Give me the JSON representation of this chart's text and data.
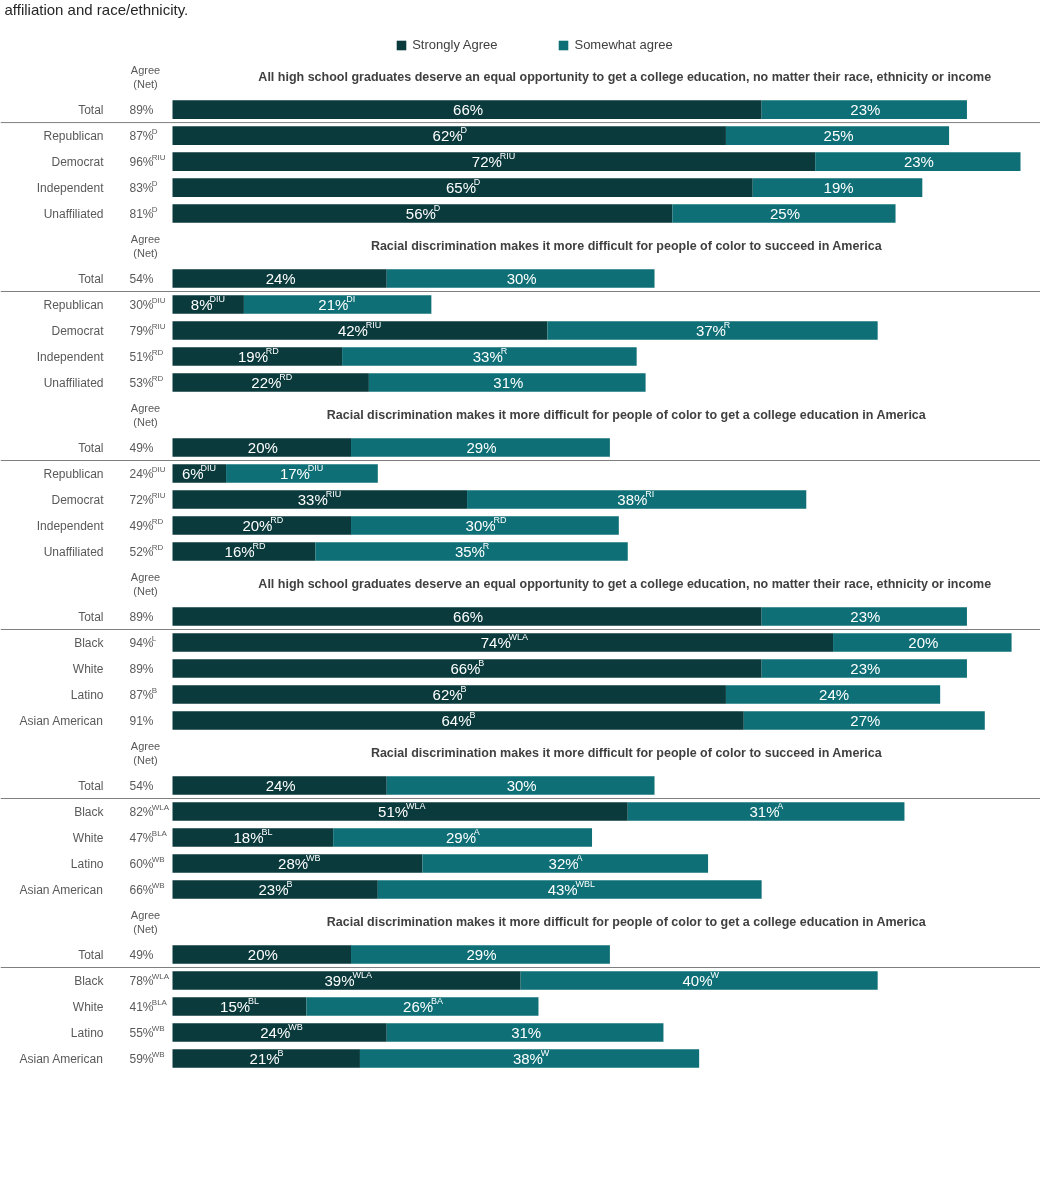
{
  "chart_data": [
    {
      "type": "bar",
      "orientation": "horizontal",
      "stacked": true,
      "legend": "top",
      "subtitle": "affiliation and race/ethnicity.",
      "title": "All  high school graduates deserve an equal opportunity to get a college education, no matter their race, ethnicity or income",
      "categories": [
        "Total",
        "Republican",
        "Democrat",
        "Independent",
        "Unaffiliated"
      ],
      "annotations": [
        "Agree\n(Net)",
        "89%",
        "87%$^{D}$",
        "96%$^{RIU}$",
        "83%$^{D}$",
        "81%$^{D}$"
      ],
      "series": [
        {
          "name": "Strongly Agree",
          "color": "#0a3a3c",
          "values": [
            66,
            62,
            72,
            65,
            56
          ],
          "value_labels": [
            "66%",
            "62%$^{D}$",
            "72%$^{RIU}$",
            "65%$^{D}$",
            "56%$^{D}$"
          ]
        },
        {
          "name": "Somewhat agree",
          "color": "#0e6f76",
          "values": [
            23,
            25,
            23,
            19,
            25
          ],
          "value_labels": [
            "23%",
            "25%",
            "23%",
            "19%",
            "25%"
          ]
        }
      ]
    },
    {
      "type": "bar",
      "orientation": "horizontal",
      "stacked": true,
      "title": "Racial discrimination makes it more difficult for people of color to succeed in America",
      "categories": [
        "Total",
        "Republican",
        "Democrat",
        "Independent",
        "Unaffiliated"
      ],
      "annotations": [
        "Agree\n(Net)",
        "54%",
        "30%$^{DIU}$",
        "79%$^{RIU}$",
        "51%$^{RD}$",
        "53%$^{RD}$"
      ],
      "series": [
        {
          "color": "#0a3a3c",
          "values": [
            24,
            8,
            42,
            19,
            22
          ],
          "value_labels": [
            "24%",
            "8%$^{DIU}$",
            "42%$^{RIU}$",
            "19%$^{RD}$",
            "22%$^{RD}$"
          ]
        },
        {
          "color": "#0e6f76",
          "values": [
            30,
            21,
            37,
            33,
            31
          ],
          "value_labels": [
            "30%",
            "21%$^{DI}$",
            "37%$^{R}$",
            "33%$^{R}$",
            "31%"
          ]
        }
      ]
    },
    {
      "type": "bar",
      "orientation": "horizontal",
      "stacked": true,
      "title": "Racial discrimination makes it more difficult for people of color to get a college education in America",
      "categories": [
        "Total",
        "Republican",
        "Democrat",
        "Independent",
        "Unaffiliated"
      ],
      "annotations": [
        "Agree\n(Net)",
        "49%",
        "24%$^{DIU}$",
        "72%$^{RIU}$",
        "49%$^{RD}$",
        "52%$^{RD}$"
      ],
      "series": [
        {
          "color": "#0a3a3c",
          "values": [
            20,
            6,
            33,
            20,
            16
          ],
          "value_labels": [
            "20%",
            "6%$^{DIU}$",
            "33%$^{RIU}$",
            "20%$^{RD}$",
            "16%$^{RD}$"
          ]
        },
        {
          "color": "#0e6f76",
          "values": [
            29,
            17,
            38,
            30,
            35
          ],
          "value_labels": [
            "29%",
            "17%$^{DIU}$",
            "38%$^{RI}$",
            "30%$^{RD}$",
            "35%$^{R}$"
          ]
        }
      ]
    },
    {
      "type": "bar",
      "orientation": "horizontal",
      "stacked": true,
      "title": "All  high school graduates deserve an equal opportunity to get a college education, no matter their race, ethnicity or income",
      "categories": [
        "Total",
        "Black",
        "White",
        "Latino",
        "Asian American"
      ],
      "annotations": [
        "Agree\n(Net)",
        "89%",
        "94%$^{L}$",
        "89%",
        "87%$^{B}$",
        "91%"
      ],
      "series": [
        {
          "color": "#0a3a3c",
          "values": [
            66,
            74,
            66,
            62,
            64
          ],
          "value_labels": [
            "66%",
            "74%$^{WLA}$",
            "66%$^{B}$",
            "62%$^{B}$",
            "64%$^{B}$"
          ]
        },
        {
          "color": "#0e6f76",
          "values": [
            23,
            20,
            23,
            24,
            27
          ],
          "value_labels": [
            "23%",
            "20%",
            "23%",
            "24%",
            "27%"
          ]
        }
      ]
    },
    {
      "type": "bar",
      "orientation": "horizontal",
      "stacked": true,
      "title": "Racial discrimination makes it more difficult for people of color to succeed in America",
      "categories": [
        "Total",
        "Black",
        "White",
        "Latino",
        "Asian American"
      ],
      "annotations": [
        "Agree\n(Net)",
        "54%",
        "82%$^{WLA}$",
        "47%$^{BLA}$",
        "60%$^{WB}$",
        "66%$^{WB}$"
      ],
      "series": [
        {
          "color": "#0a3a3c",
          "values": [
            24,
            51,
            18,
            28,
            23
          ],
          "value_labels": [
            "24%",
            "51%$^{WLA}$",
            "18%$^{BL}$",
            "28%$^{WB}$",
            "23%$^{B}$"
          ]
        },
        {
          "color": "#0e6f76",
          "values": [
            30,
            31,
            29,
            32,
            43
          ],
          "value_labels": [
            "30%",
            "31%$^{A}$",
            "29%$^{A}$",
            "32%$^{A}$",
            "43%$^{WBL}$"
          ]
        }
      ]
    },
    {
      "type": "bar",
      "orientation": "horizontal",
      "stacked": true,
      "title": "Racial discrimination makes it more difficult for people of color to get a college education in America",
      "categories": [
        "Total",
        "Black",
        "White",
        "Latino",
        "Asian American"
      ],
      "annotations": [
        "Agree\n(Net)",
        "49%",
        "78%$^{WLA}$",
        "41%$^{BLA}$",
        "55%$^{WB}$",
        "59%$^{WB}$"
      ],
      "series": [
        {
          "color": "#0a3a3c",
          "values": [
            20,
            39,
            15,
            24,
            21
          ],
          "value_labels": [
            "20%",
            "39%$^{WLA}$",
            "15%$^{BL}$",
            "24%$^{WB}$",
            "21%$^{B}$"
          ]
        },
        {
          "color": "#0e6f76",
          "values": [
            29,
            40,
            26,
            31,
            38
          ],
          "value_labels": [
            "29%",
            "40%$^{W}$",
            "26%$^{BA}$",
            "31%",
            "38%$^{W}$"
          ]
        }
      ]
    }
  ]
}
